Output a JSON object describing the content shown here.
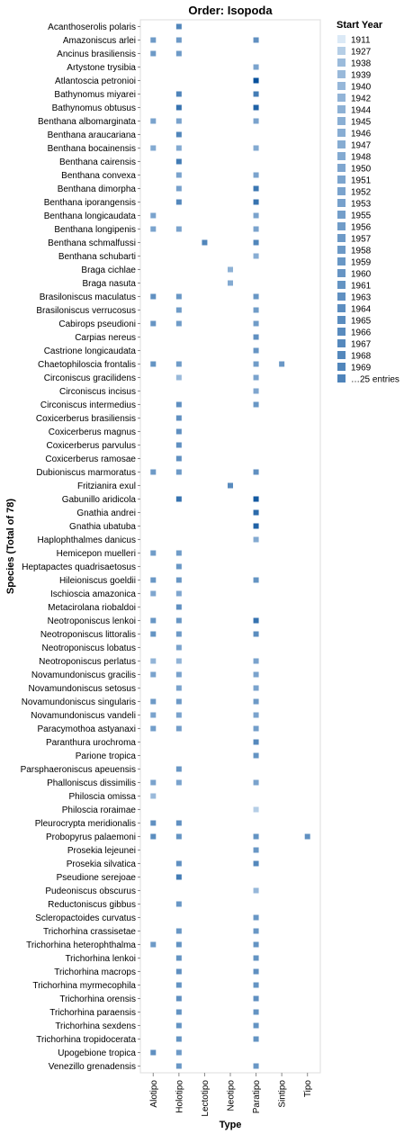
{
  "chart_data": {
    "type": "heatmap",
    "title": "Order: Isopoda",
    "xlabel": "Type",
    "ylabel": "Species (Total of 78)",
    "x_categories": [
      "Alotipo",
      "Holotipo",
      "Lectotipo",
      "Neotipo",
      "Paratipo",
      "Sintipo",
      "Tipo"
    ],
    "y_categories": [
      "Acanthoserolis polaris",
      "Amazoniscus arlei",
      "Ancinus brasiliensis",
      "Artystone trysibia",
      "Atlantoscia petronioi",
      "Bathynomus miyarei",
      "Bathynomus obtusus",
      "Benthana albomarginata",
      "Benthana araucariana",
      "Benthana bocainensis",
      "Benthana cairensis",
      "Benthana convexa",
      "Benthana dimorpha",
      "Benthana iporangensis",
      "Benthana longicaudata",
      "Benthana longipenis",
      "Benthana schmalfussi",
      "Benthana schubarti",
      "Braga cichlae",
      "Braga nasuta",
      "Brasiloniscus maculatus",
      "Brasiloniscus verrucosus",
      "Cabirops pseudioni",
      "Carpias nereus",
      "Castrione longicaudata",
      "Chaetophiloscia frontalis",
      "Circoniscus gracilidens",
      "Circoniscus incisus",
      "Circoniscus intermedius",
      "Coxicerberus brasiliensis",
      "Coxicerberus magnus",
      "Coxicerberus parvulus",
      "Coxicerberus ramosae",
      "Dubioniscus marmoratus",
      "Fritzianira exul",
      "Gabunillo aridicola",
      "Gnathia andrei",
      "Gnathia ubatuba",
      "Haplophthalmes danicus",
      "Hemicepon muelleri",
      "Heptapactes quadrisaetosus",
      "Hileioniscus goeldii",
      "Ischioscia amazonica",
      "Metacirolana riobaldoi",
      "Neotroponiscus lenkoi",
      "Neotroponiscus littoralis",
      "Neotroponiscus lobatus",
      "Neotroponiscus perlatus",
      "Novamundoniscus gracilis",
      "Novamundoniscus setosus",
      "Novamundoniscus singularis",
      "Novamundoniscus vandeli",
      "Paracymothoa astyanaxi",
      "Paranthura urochroma",
      "Parione tropica",
      "Parsphaeroniscus apeuensis",
      "Phalloniscus dissimilis",
      "Philoscia omissa",
      "Philoscia roraimae",
      "Pleurocrypta meridionalis",
      "Probopyrus palaemoni",
      "Prosekia lejeunei",
      "Prosekia silvatica",
      "Pseudione serejoae",
      "Pudeoniscus obscurus",
      "Reductoniscus gibbus",
      "Scleropactoides curvatus",
      "Trichorhina crassisetae",
      "Trichorhina heterophthalma",
      "Trichorhina lenkoi",
      "Trichorhina macrops",
      "Trichorhina myrmecophila",
      "Trichorhina orensis",
      "Trichorhina paraensis",
      "Trichorhina sexdens",
      "Trichorhina tropidocerata",
      "Upogebione tropica",
      "Venezillo grenadensis"
    ],
    "color_field": "Start Year",
    "cells": [
      {
        "species": "Acanthoserolis polaris",
        "type": "Holotipo",
        "year": 1969
      },
      {
        "species": "Amazoniscus arlei",
        "type": "Alotipo",
        "year": 1957
      },
      {
        "species": "Amazoniscus arlei",
        "type": "Holotipo",
        "year": 1957
      },
      {
        "species": "Amazoniscus arlei",
        "type": "Paratipo",
        "year": 1963
      },
      {
        "species": "Ancinus brasiliensis",
        "type": "Alotipo",
        "year": 1957
      },
      {
        "species": "Ancinus brasiliensis",
        "type": "Holotipo",
        "year": 1957
      },
      {
        "species": "Artystone trysibia",
        "type": "Paratipo",
        "year": 1952
      },
      {
        "species": "Atlantoscia petronioi",
        "type": "Paratipo",
        "year": 2000
      },
      {
        "species": "Bathynomus miyarei",
        "type": "Holotipo",
        "year": 1970
      },
      {
        "species": "Bathynomus miyarei",
        "type": "Paratipo",
        "year": 1975
      },
      {
        "species": "Bathynomus obtusus",
        "type": "Holotipo",
        "year": 1980
      },
      {
        "species": "Bathynomus obtusus",
        "type": "Paratipo",
        "year": 1990
      },
      {
        "species": "Benthana albomarginata",
        "type": "Alotipo",
        "year": 1952
      },
      {
        "species": "Benthana albomarginata",
        "type": "Holotipo",
        "year": 1952
      },
      {
        "species": "Benthana albomarginata",
        "type": "Paratipo",
        "year": 1952
      },
      {
        "species": "Benthana araucariana",
        "type": "Holotipo",
        "year": 1969
      },
      {
        "species": "Benthana bocainensis",
        "type": "Alotipo",
        "year": 1948
      },
      {
        "species": "Benthana bocainensis",
        "type": "Holotipo",
        "year": 1948
      },
      {
        "species": "Benthana bocainensis",
        "type": "Paratipo",
        "year": 1948
      },
      {
        "species": "Benthana cairensis",
        "type": "Holotipo",
        "year": 1975
      },
      {
        "species": "Benthana convexa",
        "type": "Holotipo",
        "year": 1952
      },
      {
        "species": "Benthana convexa",
        "type": "Paratipo",
        "year": 1952
      },
      {
        "species": "Benthana dimorpha",
        "type": "Holotipo",
        "year": 1953
      },
      {
        "species": "Benthana dimorpha",
        "type": "Paratipo",
        "year": 1978
      },
      {
        "species": "Benthana iporangensis",
        "type": "Holotipo",
        "year": 1968
      },
      {
        "species": "Benthana iporangensis",
        "type": "Paratipo",
        "year": 1980
      },
      {
        "species": "Benthana longicaudata",
        "type": "Alotipo",
        "year": 1952
      },
      {
        "species": "Benthana longicaudata",
        "type": "Paratipo",
        "year": 1952
      },
      {
        "species": "Benthana longipenis",
        "type": "Alotipo",
        "year": 1952
      },
      {
        "species": "Benthana longipenis",
        "type": "Holotipo",
        "year": 1952
      },
      {
        "species": "Benthana longipenis",
        "type": "Paratipo",
        "year": 1952
      },
      {
        "species": "Benthana schmalfussi",
        "type": "Lectotipo",
        "year": 1969
      },
      {
        "species": "Benthana schmalfussi",
        "type": "Paratipo",
        "year": 1969
      },
      {
        "species": "Benthana schubarti",
        "type": "Paratipo",
        "year": 1946
      },
      {
        "species": "Braga cichlae",
        "type": "Neotipo",
        "year": 1944
      },
      {
        "species": "Braga nasuta",
        "type": "Neotipo",
        "year": 1948
      },
      {
        "species": "Brasiloniscus maculatus",
        "type": "Alotipo",
        "year": 1963
      },
      {
        "species": "Brasiloniscus maculatus",
        "type": "Holotipo",
        "year": 1959
      },
      {
        "species": "Brasiloniscus maculatus",
        "type": "Paratipo",
        "year": 1959
      },
      {
        "species": "Brasiloniscus verrucosus",
        "type": "Holotipo",
        "year": 1956
      },
      {
        "species": "Brasiloniscus verrucosus",
        "type": "Paratipo",
        "year": 1956
      },
      {
        "species": "Cabirops pseudioni",
        "type": "Alotipo",
        "year": 1960
      },
      {
        "species": "Cabirops pseudioni",
        "type": "Holotipo",
        "year": 1956
      },
      {
        "species": "Cabirops pseudioni",
        "type": "Paratipo",
        "year": 1956
      },
      {
        "species": "Carpias nereus",
        "type": "Paratipo",
        "year": 1963
      },
      {
        "species": "Castrione longicaudata",
        "type": "Paratipo",
        "year": 1960
      },
      {
        "species": "Chaetophiloscia frontalis",
        "type": "Alotipo",
        "year": 1961
      },
      {
        "species": "Chaetophiloscia frontalis",
        "type": "Holotipo",
        "year": 1956
      },
      {
        "species": "Chaetophiloscia frontalis",
        "type": "Paratipo",
        "year": 1956
      },
      {
        "species": "Chaetophiloscia frontalis",
        "type": "Sintipo",
        "year": 1959
      },
      {
        "species": "Circoniscus gracilidens",
        "type": "Holotipo",
        "year": 1939
      },
      {
        "species": "Circoniscus gracilidens",
        "type": "Paratipo",
        "year": 1952
      },
      {
        "species": "Circoniscus incisus",
        "type": "Paratipo",
        "year": 1950
      },
      {
        "species": "Circoniscus intermedius",
        "type": "Holotipo",
        "year": 1963
      },
      {
        "species": "Circoniscus intermedius",
        "type": "Paratipo",
        "year": 1959
      },
      {
        "species": "Coxicerberus brasiliensis",
        "type": "Holotipo",
        "year": 1963
      },
      {
        "species": "Coxicerberus magnus",
        "type": "Holotipo",
        "year": 1963
      },
      {
        "species": "Coxicerberus parvulus",
        "type": "Holotipo",
        "year": 1963
      },
      {
        "species": "Coxicerberus ramosae",
        "type": "Holotipo",
        "year": 1963
      },
      {
        "species": "Dubioniscus marmoratus",
        "type": "Alotipo",
        "year": 1957
      },
      {
        "species": "Dubioniscus marmoratus",
        "type": "Holotipo",
        "year": 1957
      },
      {
        "species": "Dubioniscus marmoratus",
        "type": "Paratipo",
        "year": 1963
      },
      {
        "species": "Fritzianira exul",
        "type": "Neotipo",
        "year": 1966
      },
      {
        "species": "Gabunillo aridicola",
        "type": "Holotipo",
        "year": 1980
      },
      {
        "species": "Gabunillo aridicola",
        "type": "Paratipo",
        "year": 1995
      },
      {
        "species": "Gnathia andrei",
        "type": "Paratipo",
        "year": 1985
      },
      {
        "species": "Gnathia ubatuba",
        "type": "Paratipo",
        "year": 1990
      },
      {
        "species": "Haplophthalmes danicus",
        "type": "Paratipo",
        "year": 1948
      },
      {
        "species": "Hemicepon muelleri",
        "type": "Alotipo",
        "year": 1956
      },
      {
        "species": "Hemicepon muelleri",
        "type": "Holotipo",
        "year": 1956
      },
      {
        "species": "Heptapactes quadrisaetosus",
        "type": "Holotipo",
        "year": 1959
      },
      {
        "species": "Hileioniscus goeldii",
        "type": "Alotipo",
        "year": 1959
      },
      {
        "species": "Hileioniscus goeldii",
        "type": "Holotipo",
        "year": 1959
      },
      {
        "species": "Hileioniscus goeldii",
        "type": "Paratipo",
        "year": 1961
      },
      {
        "species": "Ischioscia amazonica",
        "type": "Alotipo",
        "year": 1950
      },
      {
        "species": "Ischioscia amazonica",
        "type": "Holotipo",
        "year": 1950
      },
      {
        "species": "Metacirolana riobaldoi",
        "type": "Holotipo",
        "year": 1963
      },
      {
        "species": "Neotroponiscus lenkoi",
        "type": "Alotipo",
        "year": 1959
      },
      {
        "species": "Neotroponiscus lenkoi",
        "type": "Holotipo",
        "year": 1959
      },
      {
        "species": "Neotroponiscus lenkoi",
        "type": "Paratipo",
        "year": 1980
      },
      {
        "species": "Neotroponiscus littoralis",
        "type": "Alotipo",
        "year": 1961
      },
      {
        "species": "Neotroponiscus littoralis",
        "type": "Holotipo",
        "year": 1957
      },
      {
        "species": "Neotroponiscus littoralis",
        "type": "Paratipo",
        "year": 1965
      },
      {
        "species": "Neotroponiscus lobatus",
        "type": "Holotipo",
        "year": 1952
      },
      {
        "species": "Neotroponiscus perlatus",
        "type": "Alotipo",
        "year": 1942
      },
      {
        "species": "Neotroponiscus perlatus",
        "type": "Holotipo",
        "year": 1942
      },
      {
        "species": "Neotroponiscus perlatus",
        "type": "Paratipo",
        "year": 1952
      },
      {
        "species": "Novamundoniscus gracilis",
        "type": "Alotipo",
        "year": 1952
      },
      {
        "species": "Novamundoniscus gracilis",
        "type": "Holotipo",
        "year": 1952
      },
      {
        "species": "Novamundoniscus gracilis",
        "type": "Paratipo",
        "year": 1952
      },
      {
        "species": "Novamundoniscus setosus",
        "type": "Holotipo",
        "year": 1952
      },
      {
        "species": "Novamundoniscus setosus",
        "type": "Paratipo",
        "year": 1952
      },
      {
        "species": "Novamundoniscus singularis",
        "type": "Alotipo",
        "year": 1957
      },
      {
        "species": "Novamundoniscus singularis",
        "type": "Holotipo",
        "year": 1957
      },
      {
        "species": "Novamundoniscus singularis",
        "type": "Paratipo",
        "year": 1957
      },
      {
        "species": "Novamundoniscus vandeli",
        "type": "Alotipo",
        "year": 1952
      },
      {
        "species": "Novamundoniscus vandeli",
        "type": "Holotipo",
        "year": 1952
      },
      {
        "species": "Novamundoniscus vandeli",
        "type": "Paratipo",
        "year": 1952
      },
      {
        "species": "Paracymothoa astyanaxi",
        "type": "Alotipo",
        "year": 1955
      },
      {
        "species": "Paracymothoa astyanaxi",
        "type": "Holotipo",
        "year": 1955
      },
      {
        "species": "Paracymothoa astyanaxi",
        "type": "Paratipo",
        "year": 1955
      },
      {
        "species": "Paranthura urochroma",
        "type": "Paratipo",
        "year": 1967
      },
      {
        "species": "Parione tropica",
        "type": "Paratipo",
        "year": 1961
      },
      {
        "species": "Parsphaeroniscus apeuensis",
        "type": "Holotipo",
        "year": 1959
      },
      {
        "species": "Phalloniscus dissimilis",
        "type": "Alotipo",
        "year": 1952
      },
      {
        "species": "Phalloniscus dissimilis",
        "type": "Holotipo",
        "year": 1952
      },
      {
        "species": "Phalloniscus dissimilis",
        "type": "Paratipo",
        "year": 1952
      },
      {
        "species": "Philoscia omissa",
        "type": "Alotipo",
        "year": 1939
      },
      {
        "species": "Philoscia roraimae",
        "type": "Paratipo",
        "year": 1927
      },
      {
        "species": "Pleurocrypta meridionalis",
        "type": "Alotipo",
        "year": 1963
      },
      {
        "species": "Pleurocrypta meridionalis",
        "type": "Holotipo",
        "year": 1963
      },
      {
        "species": "Probopyrus palaemoni",
        "type": "Alotipo",
        "year": 1965
      },
      {
        "species": "Probopyrus palaemoni",
        "type": "Holotipo",
        "year": 1961
      },
      {
        "species": "Probopyrus palaemoni",
        "type": "Paratipo",
        "year": 1961
      },
      {
        "species": "Probopyrus palaemoni",
        "type": "Tipo",
        "year": 1963
      },
      {
        "species": "Prosekia lejeunei",
        "type": "Paratipo",
        "year": 1959
      },
      {
        "species": "Prosekia silvatica",
        "type": "Holotipo",
        "year": 1963
      },
      {
        "species": "Prosekia silvatica",
        "type": "Paratipo",
        "year": 1968
      },
      {
        "species": "Pseudione serejoae",
        "type": "Holotipo",
        "year": 1975
      },
      {
        "species": "Pudeoniscus obscurus",
        "type": "Paratipo",
        "year": 1940
      },
      {
        "species": "Reductoniscus gibbus",
        "type": "Holotipo",
        "year": 1959
      },
      {
        "species": "Scleropactoides curvatus",
        "type": "Paratipo",
        "year": 1959
      },
      {
        "species": "Trichorhina crassisetae",
        "type": "Holotipo",
        "year": 1959
      },
      {
        "species": "Trichorhina crassisetae",
        "type": "Paratipo",
        "year": 1959
      },
      {
        "species": "Trichorhina heterophthalma",
        "type": "Alotipo",
        "year": 1957
      },
      {
        "species": "Trichorhina heterophthalma",
        "type": "Holotipo",
        "year": 1961
      },
      {
        "species": "Trichorhina heterophthalma",
        "type": "Paratipo",
        "year": 1961
      },
      {
        "species": "Trichorhina lenkoi",
        "type": "Holotipo",
        "year": 1961
      },
      {
        "species": "Trichorhina lenkoi",
        "type": "Paratipo",
        "year": 1961
      },
      {
        "species": "Trichorhina macrops",
        "type": "Holotipo",
        "year": 1963
      },
      {
        "species": "Trichorhina macrops",
        "type": "Paratipo",
        "year": 1963
      },
      {
        "species": "Trichorhina myrmecophila",
        "type": "Holotipo",
        "year": 1961
      },
      {
        "species": "Trichorhina myrmecophila",
        "type": "Paratipo",
        "year": 1961
      },
      {
        "species": "Trichorhina orensis",
        "type": "Holotipo",
        "year": 1963
      },
      {
        "species": "Trichorhina orensis",
        "type": "Paratipo",
        "year": 1963
      },
      {
        "species": "Trichorhina paraensis",
        "type": "Holotipo",
        "year": 1961
      },
      {
        "species": "Trichorhina paraensis",
        "type": "Paratipo",
        "year": 1961
      },
      {
        "species": "Trichorhina sexdens",
        "type": "Holotipo",
        "year": 1961
      },
      {
        "species": "Trichorhina sexdens",
        "type": "Paratipo",
        "year": 1961
      },
      {
        "species": "Trichorhina tropidocerata",
        "type": "Holotipo",
        "year": 1961
      },
      {
        "species": "Trichorhina tropidocerata",
        "type": "Paratipo",
        "year": 1961
      },
      {
        "species": "Upogebione tropica",
        "type": "Alotipo",
        "year": 1963
      },
      {
        "species": "Upogebione tropica",
        "type": "Holotipo",
        "year": 1957
      },
      {
        "species": "Venezillo grenadensis",
        "type": "Holotipo",
        "year": 1959
      },
      {
        "species": "Venezillo grenadensis",
        "type": "Paratipo",
        "year": 1959
      }
    ],
    "color_scale": {
      "min": 1911,
      "max": 2000,
      "low": "#dbe9f6",
      "high": "#08519c"
    },
    "legend": {
      "title": "Start Year",
      "position": "top-right",
      "entries": [
        "1911",
        "1927",
        "1938",
        "1939",
        "1940",
        "1942",
        "1944",
        "1945",
        "1946",
        "1947",
        "1948",
        "1950",
        "1951",
        "1952",
        "1953",
        "1955",
        "1956",
        "1957",
        "1958",
        "1959",
        "1960",
        "1961",
        "1963",
        "1964",
        "1965",
        "1966",
        "1967",
        "1968",
        "1969"
      ],
      "more": "…25 entries"
    },
    "grid": false
  }
}
